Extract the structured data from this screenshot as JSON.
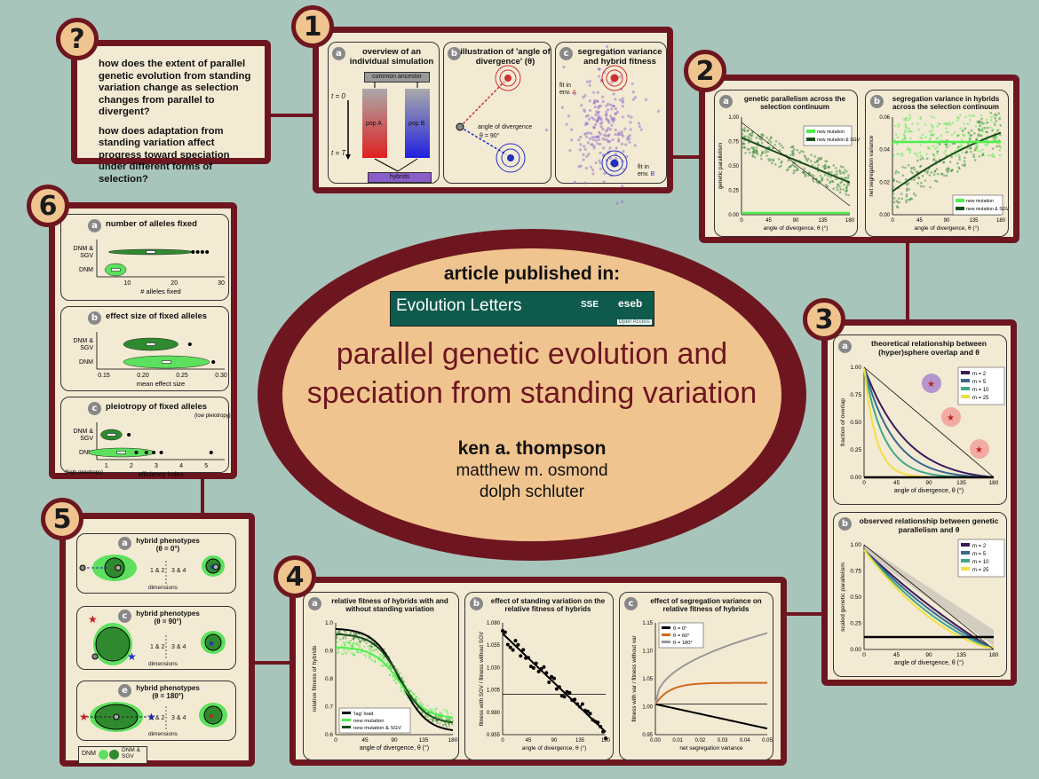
{
  "q_box": {
    "num": "?",
    "q1": "how does the extent of parallel genetic evolution from standing variation change as selection changes from parallel to divergent?",
    "q2": "how does adaptation from standing variation affect progress toward speciation under different forms of selection?"
  },
  "center": {
    "published": "article published in:",
    "journal": "Evolution Letters",
    "sse": "SSE",
    "eseb": "eseb",
    "open_access": "Open Access",
    "title_line1": "parallel genetic evolution and",
    "title_line2": "speciation from standing variation",
    "author1": "ken a. thompson",
    "author2": "matthew m. osmond",
    "author3": "dolph schluter"
  },
  "box1": {
    "num": "1",
    "a": {
      "label": "a",
      "title": "overview of an individual simulation",
      "ancestor": "common ancestor",
      "t0": "t = 0",
      "tT": "t = T",
      "popA": "pop A",
      "popB": "pop B",
      "hybrids": "hybrids"
    },
    "b": {
      "label": "b",
      "title": "illustration of 'angle of divergence' (θ)",
      "angle": "angle of divergence",
      "theta": "θ = 90°"
    },
    "c": {
      "label": "c",
      "title": "segregation variance and hybrid fitness",
      "fitA1": "fit in",
      "fitA2": "env.",
      "fitA3": "A",
      "fitB1": "fit in",
      "fitB2": "env.",
      "fitB3": "B"
    }
  },
  "box2": {
    "num": "2",
    "a": {
      "label": "a",
      "title": "genetic parallelism across the selection continuum",
      "ylabel": "genetic parallelism",
      "xlabel": "angle of divergence, θ (°)",
      "legend1": "new mutation",
      "legend2": "new mutation & SGV",
      "yticks": [
        "0.00",
        "0.25",
        "0.50",
        "0.75",
        "1.00"
      ],
      "xticks": [
        "0",
        "45",
        "90",
        "135",
        "180"
      ]
    },
    "b": {
      "label": "b",
      "title": "segregation variance in hybrids across the selection continuum",
      "ylabel": "net segregation variance",
      "xlabel": "angle of divergence, θ (°)",
      "legend1": "new mutation",
      "legend2": "new mutation & SGV",
      "yticks": [
        "0.00",
        "0.02",
        "0.04",
        "0.06"
      ],
      "xticks": [
        "0",
        "45",
        "90",
        "135",
        "180"
      ]
    }
  },
  "box3": {
    "num": "3",
    "a": {
      "label": "a",
      "title": "theoretical relationship between (hyper)sphere overlap and θ",
      "ylabel": "fraction of overlap",
      "xlabel": "angle of divergence, θ (°)",
      "yticks": [
        "0.00",
        "0.25",
        "0.50",
        "0.75",
        "1.00"
      ],
      "xticks": [
        "0",
        "45",
        "90",
        "135",
        "180"
      ],
      "legend": [
        "m = 2",
        "m = 5",
        "m = 10",
        "m = 25"
      ]
    },
    "b": {
      "label": "b",
      "title": "observed relationship between genetic parallelism and θ",
      "ylabel": "scaled genetic parallelism",
      "xlabel": "angle of divergence, θ (°)",
      "yticks": [
        "0.00",
        "0.25",
        "0.50",
        "0.75",
        "1.00"
      ],
      "xticks": [
        "0",
        "45",
        "90",
        "135",
        "180"
      ],
      "legend": [
        "m = 2",
        "m = 5",
        "m = 10",
        "m = 25"
      ]
    }
  },
  "box4": {
    "num": "4",
    "a": {
      "label": "a",
      "title": "relative fitness of hybrids with and without standing variation",
      "ylabel": "relative fitness of hybrids",
      "xlabel": "angle of divergence, θ (°)",
      "yticks": [
        "0.6",
        "0.7",
        "0.8",
        "0.9",
        "1.0"
      ],
      "xticks": [
        "0",
        "45",
        "90",
        "135",
        "180"
      ],
      "legend": [
        "'lag' load",
        "new mutation",
        "new mutation & SGV"
      ]
    },
    "b": {
      "label": "b",
      "title": "effect of standing variation on the relative fitness of hybrids",
      "ylabel": "fitness with SGV / fitness without SGV",
      "xlabel": "angle of divergence, θ (°)",
      "yticks": [
        "0.955",
        "0.980",
        "1.005",
        "1.030",
        "1.055",
        "1.080"
      ],
      "xticks": [
        "0",
        "45",
        "90",
        "135",
        "180"
      ]
    },
    "c": {
      "label": "c",
      "title": "effect of segregation variance on relative fitness of hybrids",
      "ylabel": "fitness with var / fitness without var",
      "xlabel": "net segregation variance",
      "yticks": [
        "0.95",
        "1.00",
        "1.05",
        "1.10",
        "1.15"
      ],
      "xticks": [
        "0.00",
        "0.01",
        "0.02",
        "0.03",
        "0.04",
        "0.05"
      ],
      "legend": [
        "θ = 0°",
        "θ = 60°",
        "θ = 180°"
      ]
    }
  },
  "box5": {
    "num": "5",
    "a": {
      "label": "a",
      "title1": "hybrid phenotypes",
      "title2": "(θ = 0°)",
      "d12": "1 & 2",
      "d34": "3 & 4",
      "dims": "dimensions"
    },
    "c": {
      "label": "c",
      "title1": "hybrid phenotypes",
      "title2": "(θ = 90°)",
      "d12": "1 & 2",
      "d34": "3 & 4",
      "dims": "dimensions"
    },
    "e": {
      "label": "e",
      "title1": "hybrid phenotypes",
      "title2": "(θ = 180°)",
      "d12": "1 & 2",
      "d34": "3 & 4",
      "dims": "dimensions"
    },
    "legend_dnm": "DNM",
    "legend_sgv1": "DNM &",
    "legend_sgv2": "SGV"
  },
  "box6": {
    "num": "6",
    "a": {
      "label": "a",
      "title": "number of alleles fixed",
      "cat1a": "DNM &",
      "cat1b": "SGV",
      "cat2": "DNM",
      "xlabel": "# alleles fixed",
      "xticks": [
        "10",
        "20",
        "30"
      ]
    },
    "b": {
      "label": "b",
      "title": "effect size of fixed alleles",
      "cat1a": "DNM &",
      "cat1b": "SGV",
      "cat2": "DNM",
      "xlabel": "mean effect size",
      "xticks": [
        "0.15",
        "0.20",
        "0.25",
        "0.30"
      ]
    },
    "c": {
      "label": "c",
      "title": "pleiotropy of fixed alleles",
      "cat1a": "DNM &",
      "cat1b": "SGV",
      "cat2": "DNM",
      "xlabel": "efficiency index",
      "xticks": [
        "1",
        "2",
        "3",
        "4",
        "5"
      ],
      "low": "(low pleiotropy)",
      "high": "(high pleiotropy)"
    }
  }
}
